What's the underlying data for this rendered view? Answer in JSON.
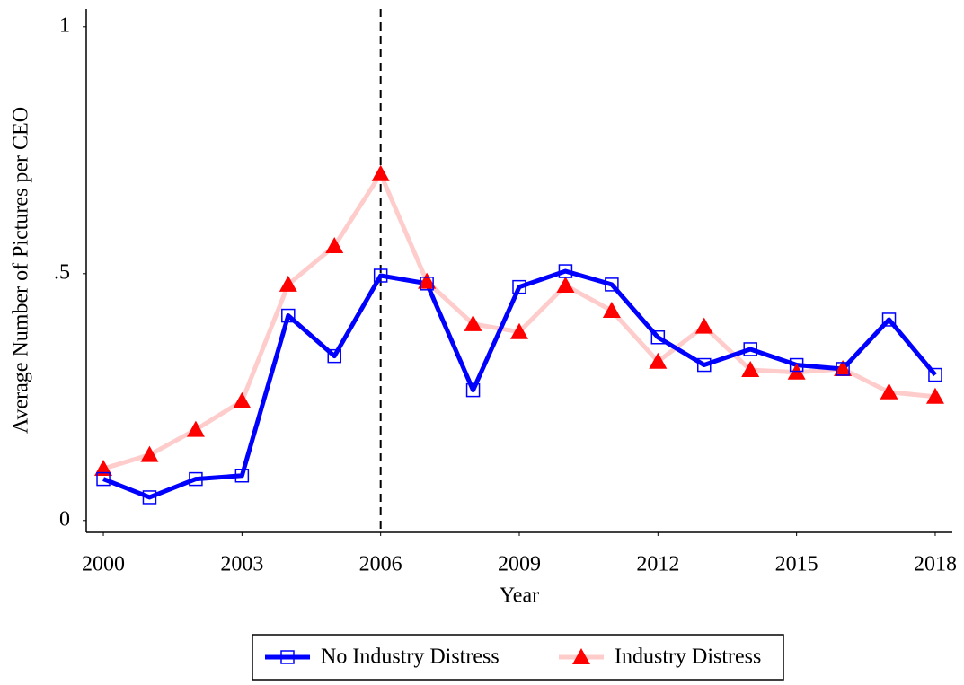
{
  "chart_data": {
    "type": "line",
    "x_label": "Year",
    "y_label": "Average Number of Pictures per CEO",
    "x": [
      2000,
      2001,
      2002,
      2003,
      2004,
      2005,
      2006,
      2007,
      2008,
      2009,
      2010,
      2011,
      2012,
      2013,
      2014,
      2015,
      2016,
      2017,
      2018
    ],
    "series": [
      {
        "name": "No Industry Distress",
        "color": "#0000ff",
        "line_color": "#0000ff",
        "marker": "square",
        "values": [
          0.084,
          0.047,
          0.084,
          0.091,
          0.415,
          0.333,
          0.496,
          0.48,
          0.264,
          0.473,
          0.505,
          0.478,
          0.371,
          0.315,
          0.347,
          0.315,
          0.307,
          0.407,
          0.295
        ]
      },
      {
        "name": "Industry Distress",
        "color": "#ff0000",
        "line_color": "#ffcccc",
        "marker": "triangle",
        "values": [
          0.105,
          0.133,
          0.184,
          0.242,
          0.478,
          0.556,
          0.702,
          0.484,
          0.398,
          0.382,
          0.476,
          0.425,
          0.322,
          0.393,
          0.305,
          0.3,
          0.307,
          0.26,
          0.251
        ]
      }
    ],
    "xlim": [
      1999.63,
      2018.37
    ],
    "xticks": [
      2000,
      2003,
      2006,
      2009,
      2012,
      2015,
      2018
    ],
    "ylim": [
      -0.024,
      1.036
    ],
    "yticks": [
      0,
      {
        "value": 0.5,
        "label": ".5"
      },
      1
    ],
    "vline": 2006,
    "legend": "bottom"
  }
}
